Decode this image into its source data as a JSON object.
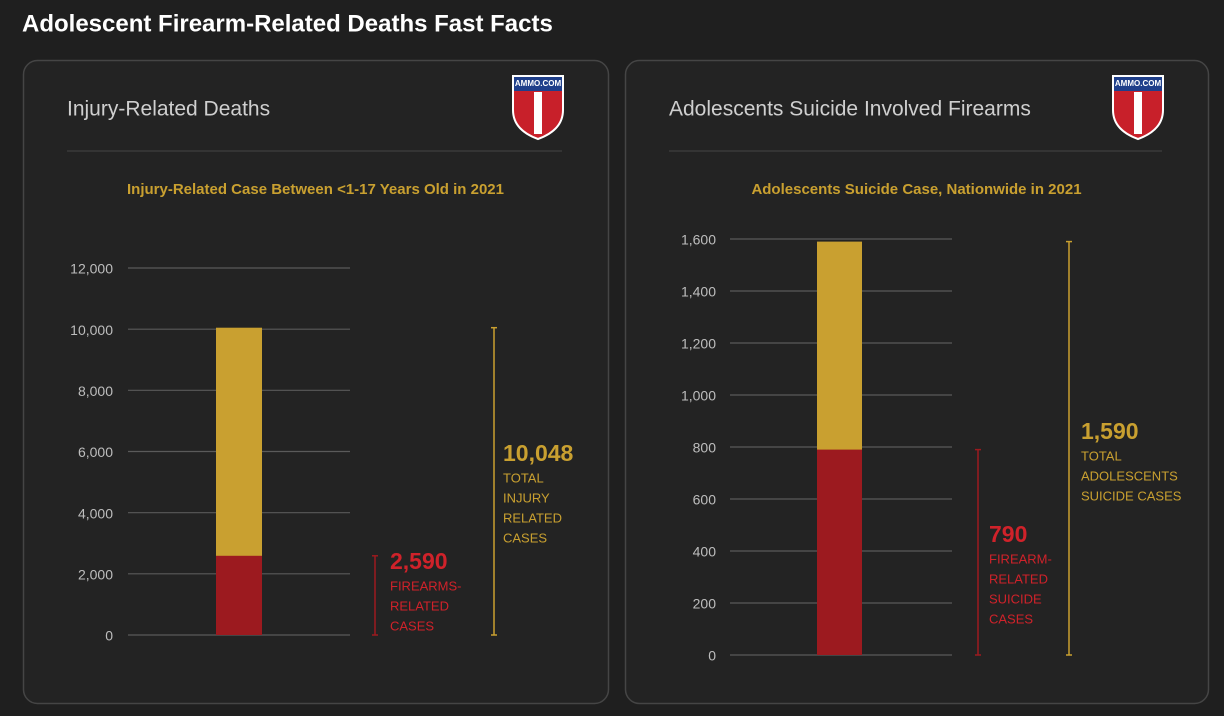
{
  "title": "Adolescent Firearm-Related Deaths Fast Facts",
  "chart_data": [
    {
      "type": "bar",
      "card_title": "Injury-Related Deaths",
      "logo": "AMMO.COM",
      "title": "Injury-Related Case Between <1-17 Years Old in 2021",
      "ylim": [
        0,
        12000
      ],
      "yticks": [
        0,
        {
          "value": 2000,
          "label": "2,000"
        },
        {
          "value": 4000,
          "label": "4,000"
        },
        {
          "value": 6000,
          "label": "6,000"
        },
        {
          "value": 8000,
          "label": "8,000"
        },
        {
          "value": 10000,
          "label": "10,000"
        },
        {
          "value": 12000,
          "label": "12,000"
        }
      ],
      "grid": true,
      "series": [
        {
          "name": [
            "TOTAL",
            "INJURY",
            "RELATED",
            "CASES"
          ],
          "color": "#c9a030",
          "values": [
            10048
          ],
          "value_labels": [
            "10,048"
          ]
        },
        {
          "name": [
            "FIREARMS-",
            "RELATED",
            "CASES"
          ],
          "color": "#9c1a1f",
          "values": [
            2590
          ],
          "value_labels": [
            "2,590"
          ]
        }
      ]
    },
    {
      "type": "bar",
      "card_title": "Adolescents Suicide Involved Firearms",
      "logo": "AMMO.COM",
      "title": "Adolescents Suicide Case, Nationwide in 2021",
      "ylim": [
        0,
        1600
      ],
      "yticks": [
        0,
        200,
        400,
        600,
        800,
        {
          "value": 1000,
          "label": "1,000"
        },
        {
          "value": 1200,
          "label": "1,200"
        },
        {
          "value": 1400,
          "label": "1,400"
        },
        {
          "value": 1600,
          "label": "1,600"
        }
      ],
      "grid": true,
      "series": [
        {
          "name": [
            "TOTAL",
            "ADOLESCENTS",
            "SUICIDE CASES"
          ],
          "color": "#c9a030",
          "values": [
            1590
          ],
          "value_labels": [
            "1,590"
          ]
        },
        {
          "name": [
            "FIREARM-",
            "RELATED",
            "SUICIDE",
            "CASES"
          ],
          "color": "#9c1a1f",
          "values": [
            790
          ],
          "value_labels": [
            "790"
          ]
        }
      ]
    }
  ]
}
